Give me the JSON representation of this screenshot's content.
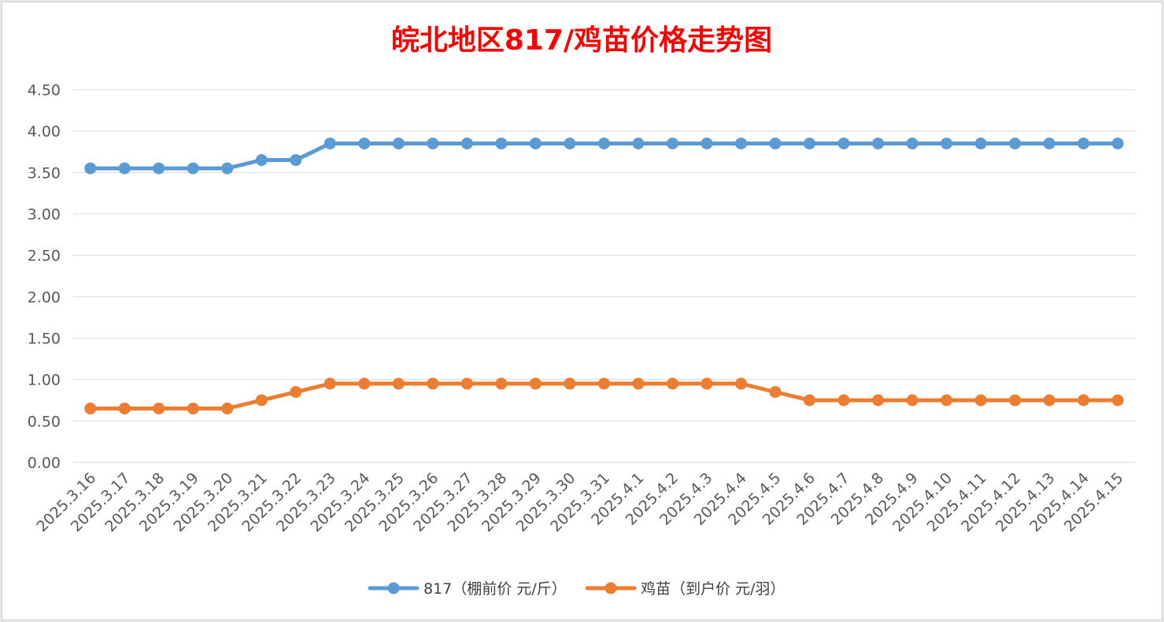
{
  "chart_data": {
    "type": "line",
    "title": "皖北地区817/鸡苗价格走势图",
    "title_color": "#ff0000",
    "xlabel": "",
    "ylabel": "",
    "ylim": [
      0,
      4.5
    ],
    "ytick_step": 0.5,
    "yticks": [
      "0.00",
      "0.50",
      "1.00",
      "1.50",
      "2.00",
      "2.50",
      "3.00",
      "3.50",
      "4.00",
      "4.50"
    ],
    "grid": true,
    "legend_position": "bottom",
    "categories": [
      "2025.3.16",
      "2025.3.17",
      "2025.3.18",
      "2025.3.19",
      "2025.3.20",
      "2025.3.21",
      "2025.3.22",
      "2025.3.23",
      "2025.3.24",
      "2025.3.25",
      "2025.3.26",
      "2025.3.27",
      "2025.3.28",
      "2025.3.29",
      "2025.3.30",
      "2025.3.31",
      "2025.4.1",
      "2025.4.2",
      "2025.4.3",
      "2025.4.4",
      "2025.4.5",
      "2025.4.6",
      "2025.4.7",
      "2025.4.8",
      "2025.4.9",
      "2025.4.10",
      "2025.4.11",
      "2025.4.12",
      "2025.4.13",
      "2025.4.14",
      "2025.4.15"
    ],
    "series": [
      {
        "name": "817（棚前价 元/斤）",
        "color": "#5b9bd5",
        "values": [
          3.55,
          3.55,
          3.55,
          3.55,
          3.55,
          3.65,
          3.65,
          3.85,
          3.85,
          3.85,
          3.85,
          3.85,
          3.85,
          3.85,
          3.85,
          3.85,
          3.85,
          3.85,
          3.85,
          3.85,
          3.85,
          3.85,
          3.85,
          3.85,
          3.85,
          3.85,
          3.85,
          3.85,
          3.85,
          3.85,
          3.85
        ]
      },
      {
        "name": "鸡苗（到户价 元/羽）",
        "color": "#ed7d31",
        "values": [
          0.65,
          0.65,
          0.65,
          0.65,
          0.65,
          0.75,
          0.85,
          0.95,
          0.95,
          0.95,
          0.95,
          0.95,
          0.95,
          0.95,
          0.95,
          0.95,
          0.95,
          0.95,
          0.95,
          0.95,
          0.85,
          0.75,
          0.75,
          0.75,
          0.75,
          0.75,
          0.75,
          0.75,
          0.75,
          0.75,
          0.75
        ]
      }
    ]
  }
}
